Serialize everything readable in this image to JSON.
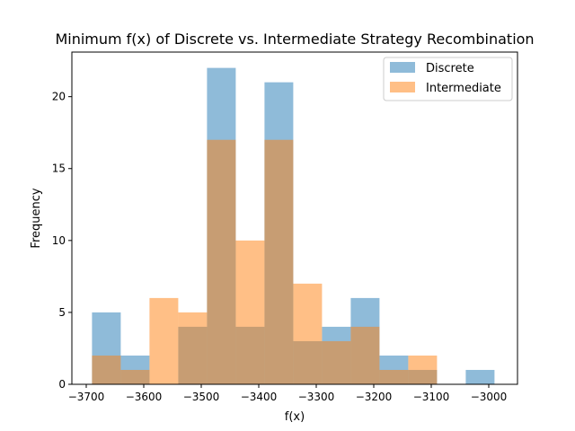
{
  "chart_data": {
    "type": "bar",
    "title": "Minimum f(x) of Discrete vs. Intermediate Strategy Recombination",
    "xlabel": "f(x)",
    "ylabel": "Frequency",
    "xlim": [
      -3725,
      -2950
    ],
    "ylim": [
      0,
      23.1
    ],
    "x_ticks": [
      -3700,
      -3600,
      -3500,
      -3400,
      -3300,
      -3200,
      -3100,
      -3000
    ],
    "y_ticks": [
      0,
      5,
      10,
      15,
      20
    ],
    "x_tick_labels": [
      "−3700",
      "−3600",
      "−3500",
      "−3400",
      "−3300",
      "−3200",
      "−3100",
      "−3000"
    ],
    "y_tick_labels": [
      "0",
      "5",
      "10",
      "15",
      "20"
    ],
    "grid": false,
    "legend_position": "top-right",
    "series": [
      {
        "name": "Discrete",
        "color": "#1f77b4",
        "opacity": 0.5,
        "bins": [
          {
            "start": -3690,
            "end": -3640,
            "count": 5
          },
          {
            "start": -3640,
            "end": -3590,
            "count": 2
          },
          {
            "start": -3590,
            "end": -3540,
            "count": 0
          },
          {
            "start": -3540,
            "end": -3490,
            "count": 4
          },
          {
            "start": -3490,
            "end": -3440,
            "count": 22
          },
          {
            "start": -3440,
            "end": -3390,
            "count": 4
          },
          {
            "start": -3390,
            "end": -3340,
            "count": 21
          },
          {
            "start": -3340,
            "end": -3290,
            "count": 3
          },
          {
            "start": -3290,
            "end": -3240,
            "count": 4
          },
          {
            "start": -3240,
            "end": -3190,
            "count": 6
          },
          {
            "start": -3190,
            "end": -3140,
            "count": 2
          },
          {
            "start": -3140,
            "end": -3090,
            "count": 1
          },
          {
            "start": -3090,
            "end": -3040,
            "count": 0
          },
          {
            "start": -3040,
            "end": -2990,
            "count": 1
          }
        ]
      },
      {
        "name": "Intermediate",
        "color": "#ff7f0e",
        "opacity": 0.5,
        "bins": [
          {
            "start": -3690,
            "end": -3640,
            "count": 2
          },
          {
            "start": -3640,
            "end": -3590,
            "count": 1
          },
          {
            "start": -3590,
            "end": -3540,
            "count": 6
          },
          {
            "start": -3540,
            "end": -3490,
            "count": 5
          },
          {
            "start": -3490,
            "end": -3440,
            "count": 17
          },
          {
            "start": -3440,
            "end": -3390,
            "count": 10
          },
          {
            "start": -3390,
            "end": -3340,
            "count": 17
          },
          {
            "start": -3340,
            "end": -3290,
            "count": 7
          },
          {
            "start": -3290,
            "end": -3240,
            "count": 3
          },
          {
            "start": -3240,
            "end": -3190,
            "count": 4
          },
          {
            "start": -3190,
            "end": -3140,
            "count": 1
          },
          {
            "start": -3140,
            "end": -3090,
            "count": 2
          }
        ]
      }
    ]
  }
}
